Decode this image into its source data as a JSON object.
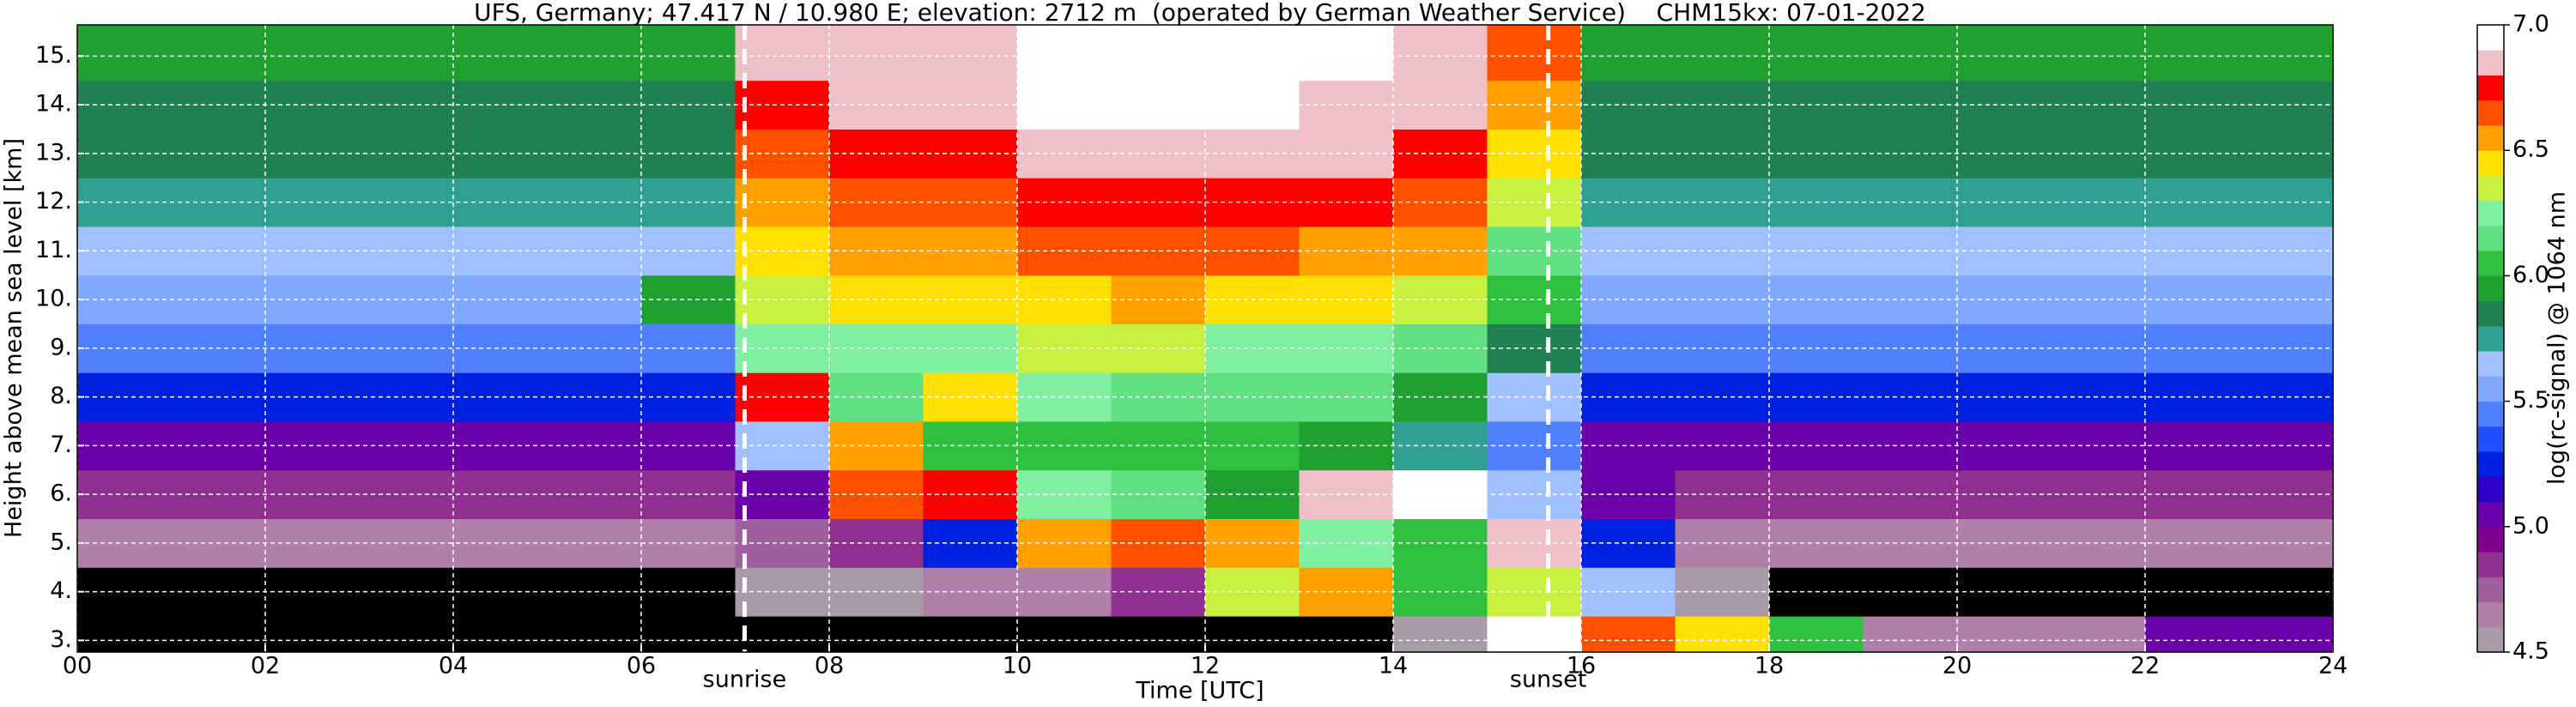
{
  "chart_data": {
    "type": "heatmap",
    "title": "UFS, Germany; 47.417 N / 10.980 E; elevation: 2712 m  (operated by German Weather Service)    CHM15kx: 07-01-2022",
    "x_label": "Time [UTC]",
    "y_label": "Height above mean sea level [km]",
    "colorbar_label": "log(rc-signal) @ 1064 nm",
    "xlim": [
      0,
      24
    ],
    "ylim": [
      2.76,
      15.64
    ],
    "clim": [
      4.5,
      7.0
    ],
    "xticks": [
      {
        "value": 0,
        "label": "00"
      },
      {
        "value": 2,
        "label": "02"
      },
      {
        "value": 4,
        "label": "04"
      },
      {
        "value": 6,
        "label": "06"
      },
      {
        "value": 8,
        "label": "08"
      },
      {
        "value": 10,
        "label": "10"
      },
      {
        "value": 12,
        "label": "12"
      },
      {
        "value": 14,
        "label": "14"
      },
      {
        "value": 16,
        "label": "16"
      },
      {
        "value": 18,
        "label": "18"
      },
      {
        "value": 20,
        "label": "20"
      },
      {
        "value": 22,
        "label": "22"
      },
      {
        "value": 24,
        "label": "24"
      }
    ],
    "yticks": [
      {
        "value": 3,
        "label": "3."
      },
      {
        "value": 4,
        "label": "4."
      },
      {
        "value": 5,
        "label": "5."
      },
      {
        "value": 6,
        "label": "6."
      },
      {
        "value": 7,
        "label": "7."
      },
      {
        "value": 8,
        "label": "8."
      },
      {
        "value": 9,
        "label": "9."
      },
      {
        "value": 10,
        "label": "10."
      },
      {
        "value": 11,
        "label": "11."
      },
      {
        "value": 12,
        "label": "12."
      },
      {
        "value": 13,
        "label": "13."
      },
      {
        "value": 14,
        "label": "14."
      },
      {
        "value": 15,
        "label": "15."
      }
    ],
    "cticks": [
      4.5,
      {
        "value": 5,
        "label": "5.0"
      },
      5.5,
      {
        "value": 6,
        "label": "6.0"
      },
      6.5,
      {
        "value": 7,
        "label": "7.0"
      }
    ],
    "grid": true,
    "grid_color": "#ffffff",
    "under_color": "#000000",
    "colors": [
      "#a89aa8",
      "#b080a8",
      "#a060a0",
      "#903090",
      "#800090",
      "#6a00a8",
      "#3000c8",
      "#0020e0",
      "#2050ff",
      "#5080ff",
      "#80a8ff",
      "#a0c0ff",
      "#30a090",
      "#208050",
      "#20a030",
      "#30c040",
      "#60e080",
      "#80f0a0",
      "#c8f040",
      "#ffe000",
      "#ffa000",
      "#ff5000",
      "#ff0000",
      "#f0c0c8",
      "#ffffff"
    ],
    "xbins": [
      0,
      1,
      2,
      3,
      4,
      5,
      6,
      7,
      8,
      9,
      10,
      11,
      12,
      13,
      14,
      15,
      16,
      17,
      18,
      19,
      20,
      21,
      22,
      23,
      24
    ],
    "ybins": [
      2.76,
      3.5,
      4.5,
      5.5,
      6.5,
      7.5,
      8.5,
      9.5,
      10.5,
      11.5,
      12.5,
      13.5,
      14.5,
      15.64
    ],
    "z": [
      [
        4.3,
        4.3,
        4.3,
        4.3,
        4.3,
        4.3,
        4.4,
        4.3,
        4.3,
        4.3,
        4.3,
        4.3,
        4.3,
        4.4,
        4.5,
        6.9,
        6.6,
        6.4,
        6.0,
        4.6,
        4.6,
        4.6,
        5.0,
        5.0
      ],
      [
        4.4,
        4.4,
        4.4,
        4.4,
        4.4,
        4.4,
        4.4,
        4.5,
        4.5,
        4.6,
        4.6,
        4.8,
        6.3,
        6.5,
        6.0,
        6.3,
        5.6,
        4.5,
        4.4,
        4.4,
        4.4,
        4.4,
        4.4,
        4.4
      ],
      [
        4.6,
        4.6,
        4.6,
        4.6,
        4.6,
        4.6,
        4.6,
        4.7,
        4.8,
        5.2,
        6.5,
        6.6,
        6.5,
        6.2,
        6.0,
        6.8,
        5.2,
        4.6,
        4.6,
        4.6,
        4.6,
        4.6,
        4.6,
        4.6
      ],
      [
        4.8,
        4.8,
        4.8,
        4.8,
        4.8,
        4.8,
        4.8,
        5.0,
        6.6,
        6.7,
        6.2,
        6.1,
        5.9,
        6.8,
        6.9,
        5.6,
        5.0,
        4.8,
        4.8,
        4.8,
        4.8,
        4.8,
        4.8,
        4.8
      ],
      [
        5.0,
        5.0,
        5.0,
        5.0,
        5.0,
        5.0,
        5.0,
        5.6,
        6.5,
        6.0,
        6.0,
        6.0,
        6.0,
        5.9,
        5.7,
        5.4,
        5.0,
        5.0,
        5.0,
        5.0,
        5.0,
        5.0,
        5.0,
        5.0
      ],
      [
        5.2,
        5.2,
        5.2,
        5.2,
        5.2,
        5.2,
        5.2,
        6.7,
        6.1,
        6.4,
        6.2,
        6.1,
        6.1,
        6.1,
        5.9,
        5.6,
        5.2,
        5.2,
        5.2,
        5.2,
        5.2,
        5.2,
        5.2,
        5.2
      ],
      [
        5.4,
        5.4,
        5.4,
        5.4,
        5.4,
        5.4,
        5.4,
        6.2,
        6.2,
        6.2,
        6.3,
        6.3,
        6.2,
        6.2,
        6.1,
        5.8,
        5.4,
        5.4,
        5.4,
        5.4,
        5.4,
        5.4,
        5.4,
        5.4
      ],
      [
        5.5,
        5.5,
        5.5,
        5.5,
        5.5,
        5.5,
        5.9,
        6.3,
        6.4,
        6.4,
        6.4,
        6.5,
        6.4,
        6.4,
        6.3,
        6.0,
        5.5,
        5.5,
        5.5,
        5.5,
        5.5,
        5.5,
        5.5,
        5.5
      ],
      [
        5.6,
        5.6,
        5.6,
        5.6,
        5.6,
        5.6,
        5.6,
        6.4,
        6.5,
        6.5,
        6.6,
        6.6,
        6.6,
        6.5,
        6.5,
        6.1,
        5.6,
        5.6,
        5.6,
        5.6,
        5.6,
        5.6,
        5.6,
        5.6
      ],
      [
        5.7,
        5.7,
        5.7,
        5.7,
        5.7,
        5.7,
        5.7,
        6.5,
        6.6,
        6.6,
        6.7,
        6.7,
        6.7,
        6.7,
        6.6,
        6.3,
        5.7,
        5.7,
        5.7,
        5.7,
        5.7,
        5.7,
        5.7,
        5.7
      ],
      [
        5.8,
        5.8,
        5.8,
        5.8,
        5.8,
        5.8,
        5.8,
        6.6,
        6.7,
        6.7,
        6.8,
        6.8,
        6.8,
        6.8,
        6.7,
        6.4,
        5.8,
        5.8,
        5.8,
        5.8,
        5.8,
        5.8,
        5.8,
        5.8
      ],
      [
        5.8,
        5.8,
        5.8,
        5.8,
        5.8,
        5.8,
        5.8,
        6.7,
        6.8,
        6.8,
        6.9,
        6.9,
        6.9,
        6.8,
        6.8,
        6.5,
        5.8,
        5.8,
        5.8,
        5.8,
        5.8,
        5.8,
        5.8,
        5.8
      ],
      [
        5.9,
        5.9,
        5.9,
        5.9,
        5.9,
        5.9,
        5.9,
        6.8,
        6.8,
        6.8,
        6.9,
        6.9,
        6.9,
        6.9,
        6.8,
        6.6,
        5.9,
        5.9,
        5.9,
        5.9,
        5.9,
        5.9,
        5.9,
        5.9
      ]
    ],
    "annotations": [
      {
        "text": "sunrise",
        "x": 7.1
      },
      {
        "text": "sunset",
        "x": 15.65
      }
    ]
  }
}
